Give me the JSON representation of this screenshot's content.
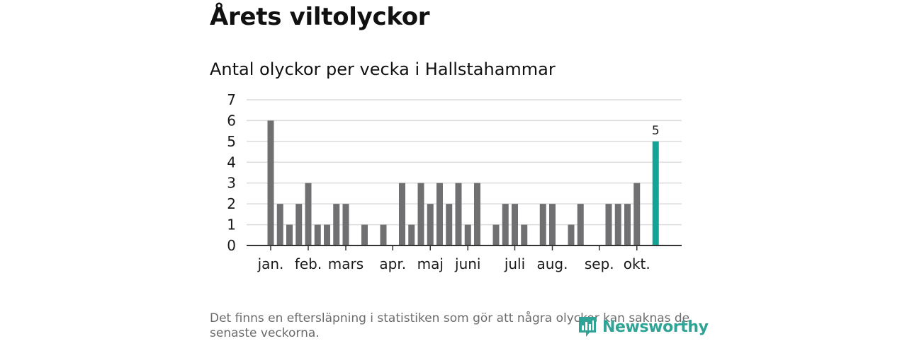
{
  "title": "Årets viltolyckor",
  "subtitle": "Antal olyckor per vecka i Hallstahammar",
  "note": "Det finns en eftersläpning i statistiken som gör att några olyckor kan saknas de senaste veckorna.",
  "brand": {
    "name": "Newsworthy",
    "icon": "newsworthy-logo-icon",
    "color": "#2fa395"
  },
  "colors": {
    "bar": "#707073",
    "highlight": "#12a597",
    "grid": "#dcdcdc",
    "axis": "#333333"
  },
  "chart_data": {
    "type": "bar",
    "title": "Antal olyckor per vecka i Hallstahammar",
    "xlabel": "",
    "ylabel": "",
    "ylim": [
      0,
      7
    ],
    "yticks": [
      "0",
      "1",
      "2",
      "3",
      "4",
      "5",
      "6",
      "7"
    ],
    "weeks": [
      1,
      2,
      3,
      4,
      5,
      6,
      7,
      8,
      9,
      10,
      11,
      12,
      13,
      14,
      15,
      16,
      17,
      18,
      19,
      20,
      21,
      22,
      23,
      24,
      25,
      26,
      27,
      28,
      29,
      30,
      31,
      32,
      33,
      34,
      35,
      36,
      37,
      38,
      39,
      40,
      41,
      42
    ],
    "values": [
      6,
      2,
      1,
      2,
      3,
      1,
      1,
      2,
      2,
      0,
      1,
      0,
      1,
      0,
      3,
      1,
      3,
      2,
      3,
      2,
      3,
      1,
      3,
      0,
      1,
      2,
      2,
      1,
      0,
      2,
      2,
      0,
      1,
      2,
      0,
      0,
      2,
      2,
      2,
      3,
      0,
      5
    ],
    "highlight_index": 41,
    "highlight_label": "5",
    "month_labels": [
      {
        "label": "jan.",
        "week": 1
      },
      {
        "label": "feb.",
        "week": 5
      },
      {
        "label": "mars",
        "week": 9
      },
      {
        "label": "apr.",
        "week": 14
      },
      {
        "label": "maj",
        "week": 18
      },
      {
        "label": "juni",
        "week": 22
      },
      {
        "label": "juli",
        "week": 27
      },
      {
        "label": "aug.",
        "week": 31
      },
      {
        "label": "sep.",
        "week": 36
      },
      {
        "label": "okt.",
        "week": 40
      }
    ]
  }
}
